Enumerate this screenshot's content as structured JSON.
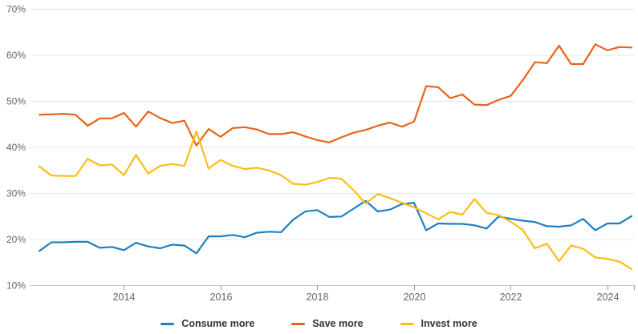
{
  "chart_data": {
    "type": "line",
    "title": "",
    "xlabel": "",
    "ylabel": "",
    "x": [
      2012.25,
      2012.5,
      2012.75,
      2013.0,
      2013.25,
      2013.5,
      2013.75,
      2014.0,
      2014.25,
      2014.5,
      2014.75,
      2015.0,
      2015.25,
      2015.5,
      2015.75,
      2016.0,
      2016.25,
      2016.5,
      2016.75,
      2017.0,
      2017.25,
      2017.5,
      2017.75,
      2018.0,
      2018.25,
      2018.5,
      2018.75,
      2019.0,
      2019.25,
      2019.5,
      2019.75,
      2020.0,
      2020.25,
      2020.5,
      2020.75,
      2021.0,
      2021.25,
      2021.5,
      2021.75,
      2022.0,
      2022.25,
      2022.5,
      2022.75,
      2023.0,
      2023.25,
      2023.5,
      2023.75,
      2024.0,
      2024.25,
      2024.5
    ],
    "series": [
      {
        "name": "Consume more",
        "color": "#1e80c1",
        "values": [
          17.4,
          19.3,
          19.3,
          19.4,
          19.4,
          18.1,
          18.3,
          17.6,
          19.2,
          18.4,
          18.0,
          18.8,
          18.6,
          16.9,
          20.6,
          20.6,
          20.9,
          20.4,
          21.4,
          21.6,
          21.5,
          24.2,
          26.0,
          26.3,
          24.8,
          24.9,
          26.6,
          28.3,
          26.0,
          26.4,
          27.6,
          27.9,
          21.9,
          23.4,
          23.3,
          23.3,
          23.0,
          22.3,
          24.9,
          24.4,
          24.0,
          23.7,
          22.8,
          22.7,
          23.0,
          24.4,
          21.9,
          23.4,
          23.4,
          25.0
        ]
      },
      {
        "name": "Save more",
        "color": "#e8631a",
        "values": [
          47.0,
          47.1,
          47.2,
          47.0,
          44.6,
          46.2,
          46.2,
          47.4,
          44.4,
          47.7,
          46.3,
          45.2,
          45.7,
          40.3,
          43.9,
          42.2,
          44.1,
          44.3,
          43.8,
          42.8,
          42.8,
          43.2,
          42.3,
          41.5,
          41.0,
          42.1,
          43.1,
          43.7,
          44.6,
          45.3,
          44.4,
          45.5,
          53.2,
          53.0,
          50.6,
          51.4,
          49.2,
          49.1,
          50.2,
          51.1,
          54.5,
          58.4,
          58.2,
          62.0,
          58.0,
          58.0,
          62.3,
          61.0,
          61.7,
          61.6
        ]
      },
      {
        "name": "Invest more",
        "color": "#fbbd17",
        "values": [
          35.8,
          33.8,
          33.7,
          33.7,
          37.4,
          36.0,
          36.2,
          33.9,
          38.3,
          34.2,
          35.9,
          36.3,
          35.9,
          43.4,
          35.3,
          37.2,
          35.9,
          35.2,
          35.5,
          34.9,
          33.9,
          32.0,
          31.8,
          32.4,
          33.3,
          33.1,
          30.6,
          27.7,
          29.8,
          28.9,
          27.9,
          26.9,
          25.6,
          24.3,
          25.9,
          25.3,
          28.7,
          25.7,
          25.2,
          23.8,
          22.0,
          18.0,
          19.0,
          15.2,
          18.6,
          17.9,
          16.0,
          15.7,
          15.1,
          13.5
        ]
      }
    ],
    "ylim": [
      10,
      70
    ],
    "xlim": [
      2012.05,
      2024.55
    ],
    "y_ticks": [
      10,
      20,
      30,
      40,
      50,
      60,
      70
    ],
    "y_tick_suffix": "%",
    "x_ticks": [
      2014,
      2016,
      2018,
      2020,
      2022,
      2024
    ],
    "grid": true,
    "legend_position": "bottom"
  },
  "colors": {
    "background": "#ffffff",
    "gridline": "#e7e7e7",
    "axis_line": "#c9c9c9",
    "tick_mark": "#999999",
    "axis_label_text": "#666666",
    "legend_text": "#333333"
  }
}
